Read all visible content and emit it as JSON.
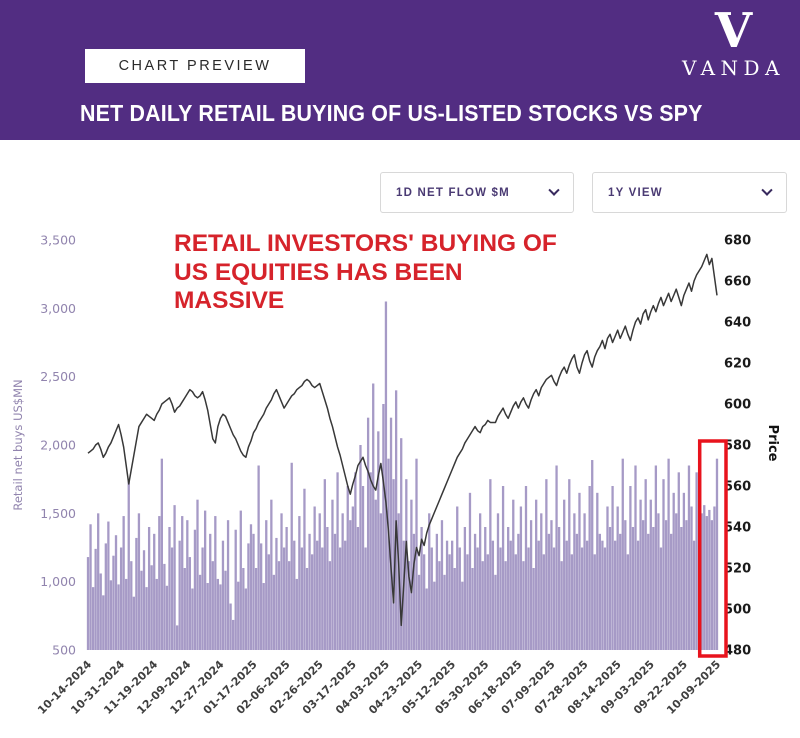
{
  "header": {
    "preview_badge": "CHART PREVIEW",
    "title": "NET DAILY RETAIL BUYING OF US-LISTED STOCKS VS SPY",
    "brand_name": "VANDA",
    "brand_mark": "V",
    "background_color": "#522d82"
  },
  "controls": {
    "flow_dropdown_value": "1D NET FLOW $M",
    "view_dropdown_value": "1Y VIEW"
  },
  "annotation": {
    "text": "RETAIL INVESTORS' BUYING OF\nUS EQUITIES HAS BEEN\nMASSIVE",
    "color": "#d6232b"
  },
  "chart_data": {
    "type": "bar+line",
    "title": "NET DAILY RETAIL BUYING OF US-LISTED STOCKS VS SPY",
    "x_tick_labels": [
      "10-14-2024",
      "10-31-2024",
      "11-19-2024",
      "12-09-2024",
      "12-27-2024",
      "01-17-2025",
      "02-06-2025",
      "02-26-2025",
      "03-17-2025",
      "04-03-2025",
      "04-23-2025",
      "05-12-2025",
      "05-30-2025",
      "06-18-2025",
      "07-09-2025",
      "07-28-2025",
      "08-14-2025",
      "09-03-2025",
      "09-22-2025",
      "10-09-2025"
    ],
    "x_tick_indices": [
      0,
      13,
      26,
      39,
      52,
      65,
      78,
      91,
      104,
      117,
      130,
      143,
      156,
      169,
      182,
      195,
      208,
      221,
      234,
      247
    ],
    "left_axis": {
      "label": "Retail net buys US$MN",
      "min": 500,
      "max": 3500,
      "tick_labels": [
        "3,500",
        "3,000",
        "2,500",
        "2,000",
        "1,500",
        "1,000",
        "500"
      ],
      "tick_values": [
        3500,
        3000,
        2500,
        2000,
        1500,
        1000,
        500
      ],
      "color": "#9184ae"
    },
    "right_axis": {
      "label": "Price",
      "min": 480,
      "max": 680,
      "tick_values": [
        680,
        660,
        640,
        620,
        600,
        580,
        560,
        540,
        520,
        500,
        480
      ],
      "color": "#1a1a1a"
    },
    "bar_series": {
      "name": "Retail net buys US$MN",
      "color": "#a69ac6",
      "values": [
        1180,
        1420,
        960,
        1240,
        1500,
        1060,
        900,
        1280,
        1440,
        1010,
        1190,
        1340,
        980,
        1250,
        1480,
        1020,
        1750,
        1150,
        890,
        1320,
        1500,
        1080,
        1230,
        960,
        1400,
        1120,
        1350,
        1020,
        1480,
        1900,
        1130,
        970,
        1400,
        1250,
        1560,
        680,
        1300,
        1480,
        1100,
        1450,
        1180,
        950,
        1380,
        1600,
        1050,
        1250,
        1520,
        990,
        1350,
        1150,
        1480,
        1020,
        980,
        1300,
        1080,
        1450,
        840,
        720,
        1380,
        1000,
        1520,
        1100,
        950,
        1280,
        1420,
        1350,
        1100,
        1850,
        1280,
        990,
        1450,
        1200,
        1600,
        1050,
        1320,
        1150,
        1500,
        1250,
        1400,
        1150,
        1870,
        1300,
        1020,
        1480,
        1250,
        1680,
        1100,
        1350,
        1200,
        1550,
        1300,
        1500,
        1250,
        1750,
        1400,
        1150,
        1600,
        1350,
        1800,
        1250,
        1500,
        1300,
        1700,
        1450,
        1550,
        1800,
        1400,
        2000,
        1700,
        1250,
        2200,
        1800,
        2450,
        1600,
        2100,
        1500,
        2300,
        3050,
        1900,
        2200,
        1750,
        2400,
        1500,
        2050,
        1300,
        1750,
        1150,
        1600,
        1350,
        1900,
        1050,
        1400,
        1200,
        950,
        1500,
        1250,
        1000,
        1350,
        1150,
        1450,
        1050,
        1300,
        1200,
        1300,
        1100,
        1550,
        1250,
        1000,
        1400,
        1200,
        1650,
        1100,
        1350,
        1250,
        1500,
        1150,
        1400,
        1200,
        1750,
        1300,
        1050,
        1500,
        1250,
        1700,
        1150,
        1400,
        1300,
        1600,
        1200,
        1350,
        1550,
        1150,
        1700,
        1250,
        1450,
        1100,
        1600,
        1300,
        1500,
        1200,
        1750,
        1350,
        1450,
        1250,
        1850,
        1400,
        1150,
        1600,
        1300,
        1750,
        1200,
        1500,
        1350,
        1650,
        1250,
        1500,
        1300,
        1700,
        1890,
        1200,
        1650,
        1350,
        1300,
        1250,
        1550,
        1400,
        1700,
        1300,
        1550,
        1350,
        1900,
        1450,
        1200,
        1700,
        1400,
        1850,
        1300,
        1600,
        1450,
        1750,
        1350,
        1600,
        1400,
        1850,
        1500,
        1250,
        1750,
        1450,
        1900,
        1350,
        1650,
        1500,
        1800,
        1400,
        1650,
        1450,
        1850,
        1550,
        1300,
        1800,
        1890,
        1500,
        1560,
        1480,
        1525,
        1450,
        1550,
        1900
      ]
    },
    "line_series": {
      "name": "SPY",
      "color": "#383838",
      "values": [
        576,
        577,
        578,
        580,
        581,
        578,
        574,
        576,
        579,
        581,
        584,
        587,
        590,
        585,
        579,
        570,
        561,
        568,
        575,
        582,
        589,
        591,
        593,
        595,
        594,
        593,
        592,
        595,
        597,
        600,
        601,
        602,
        603,
        600,
        596,
        598,
        599,
        601,
        603,
        605,
        607,
        606,
        604,
        603,
        604,
        606,
        602,
        597,
        590,
        583,
        581,
        589,
        593,
        595,
        594,
        591,
        588,
        585,
        583,
        580,
        577,
        575,
        574,
        579,
        582,
        586,
        588,
        591,
        593,
        595,
        598,
        600,
        602,
        605,
        607,
        604,
        601,
        598,
        600,
        602,
        604,
        605,
        607,
        608,
        609,
        611,
        612,
        611,
        609,
        608,
        609,
        610,
        606,
        602,
        598,
        593,
        589,
        584,
        579,
        575,
        570,
        565,
        560,
        556,
        561,
        565,
        570,
        572,
        574,
        570,
        567,
        563,
        560,
        558,
        565,
        571,
        562,
        552,
        538,
        520,
        503,
        543,
        522,
        492,
        512,
        533,
        516,
        508,
        522,
        530,
        526,
        534,
        531,
        537,
        541,
        544,
        547,
        550,
        553,
        556,
        559,
        562,
        565,
        568,
        571,
        574,
        576,
        578,
        581,
        583,
        585,
        587,
        589,
        587,
        586,
        589,
        590,
        592,
        591,
        591,
        591,
        594,
        596,
        598,
        595,
        593,
        596,
        599,
        601,
        598,
        601,
        603,
        600,
        598,
        602,
        605,
        607,
        604,
        608,
        610,
        612,
        613,
        614,
        611,
        609,
        613,
        616,
        618,
        615,
        619,
        622,
        624,
        618,
        615,
        620,
        624,
        626,
        621,
        618,
        623,
        626,
        628,
        631,
        627,
        632,
        634,
        630,
        633,
        636,
        632,
        635,
        638,
        634,
        631,
        636,
        640,
        642,
        639,
        644,
        646,
        641,
        645,
        648,
        645,
        649,
        652,
        648,
        651,
        654,
        650,
        653,
        656,
        652,
        648,
        653,
        656,
        659,
        655,
        660,
        663,
        665,
        667,
        670,
        673,
        668,
        671,
        662,
        653
      ]
    },
    "highlight_box": {
      "start_index": 241,
      "end_index": 247,
      "color": "#e8131d"
    }
  }
}
